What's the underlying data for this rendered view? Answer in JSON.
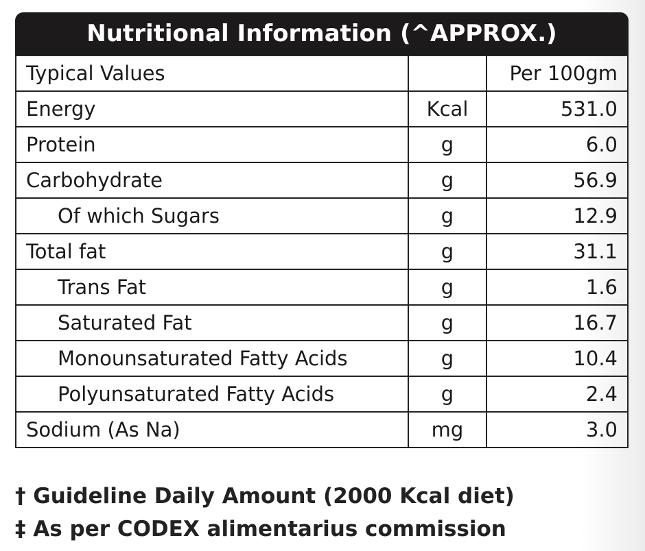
{
  "header": {
    "title": "Nutritional Information (^APPROX.)"
  },
  "table": {
    "rows": [
      [
        "Typical Values",
        "",
        "Per 100gm"
      ],
      [
        "Energy",
        "Kcal",
        "531.0"
      ],
      [
        "Protein",
        "g",
        "6.0"
      ],
      [
        "Carbohydrate",
        "g",
        "56.9"
      ],
      [
        "Of which Sugars",
        "g",
        "12.9"
      ],
      [
        "Total fat",
        "g",
        "31.1"
      ],
      [
        "Trans Fat",
        "g",
        "1.6"
      ],
      [
        "Saturated Fat",
        "g",
        "16.7"
      ],
      [
        "Monounsaturated Fatty Acids",
        "g",
        "10.4"
      ],
      [
        "Polyunsaturated Fatty Acids",
        "g",
        "2.4"
      ],
      [
        "Sodium (As Na)",
        "mg",
        "3.0"
      ]
    ]
  },
  "footnotes": [
    "† Guideline Daily Amount (2000 Kcal diet)",
    "‡ As per CODEX alimentarius commission"
  ]
}
